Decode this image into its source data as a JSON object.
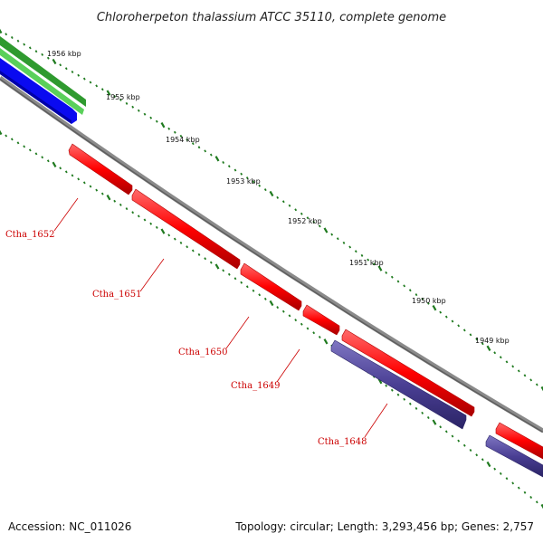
{
  "title": "Chloroherpeton thalassium ATCC 35110, complete genome",
  "ruler_labels": [
    "1956 kbp",
    "1955 kbp",
    "1954 kbp",
    "1953 kbp",
    "1952 kbp",
    "1951 kbp",
    "1950 kbp",
    "1949 kbp"
  ],
  "genes": [
    "Ctha_1652",
    "Ctha_1651",
    "Ctha_1650",
    "Ctha_1649",
    "Ctha_1648"
  ],
  "footer": {
    "accession": "Accession: NC_011026",
    "summary": "Topology: circular; Length: 3,293,456 bp; Genes: 2,757"
  },
  "colors": {
    "forward_gene": "#ff0000",
    "reverse_gene": "#4a3f94",
    "rna_green": "#33aa33",
    "rna_blue": "#0000ff",
    "backbone": "#777777",
    "tick": "#1f7a1f",
    "label": "#cc0000"
  }
}
